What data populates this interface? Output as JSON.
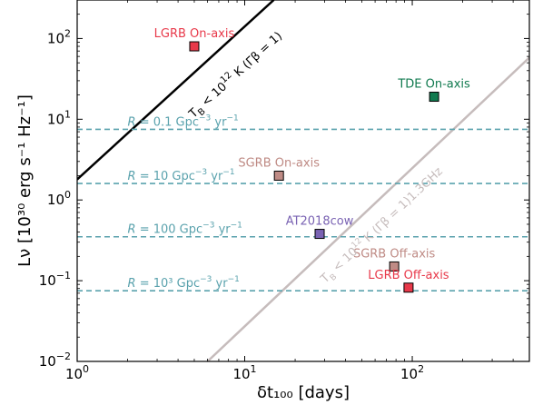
{
  "chart_data": {
    "type": "scatter",
    "xscale": "log",
    "yscale": "log",
    "xlim": [
      1,
      500
    ],
    "ylim": [
      0.01,
      300
    ],
    "xlabel": "δt₁₀₀ [days]",
    "ylabel": "Lν [10³⁰ erg s⁻¹ Hz⁻¹]",
    "x_ticks": [
      {
        "value": 1,
        "base": "10",
        "exp": "0"
      },
      {
        "value": 10,
        "base": "10",
        "exp": "1"
      },
      {
        "value": 100,
        "base": "10",
        "exp": "2"
      }
    ],
    "y_ticks": [
      {
        "value": 0.01,
        "base": "10",
        "exp": "−2"
      },
      {
        "value": 0.1,
        "base": "10",
        "exp": "−1"
      },
      {
        "value": 1,
        "base": "10",
        "exp": "0"
      },
      {
        "value": 10,
        "base": "10",
        "exp": "1"
      },
      {
        "value": 100,
        "base": "10",
        "exp": "2"
      }
    ],
    "points": [
      {
        "label": "LGRB On-axis",
        "x": 5.0,
        "y": 80,
        "color": "#e8394a",
        "label_pos": "above"
      },
      {
        "label": "TDE On-axis",
        "x": 135,
        "y": 19,
        "color": "#117a4f",
        "label_pos": "above"
      },
      {
        "label": "SGRB On-axis",
        "x": 16,
        "y": 2.0,
        "color": "#bf8b85",
        "label_pos": "above"
      },
      {
        "label": "AT2018cow",
        "x": 28,
        "y": 0.38,
        "color": "#7a63b3",
        "label_pos": "above"
      },
      {
        "label": "SGRB Off-axis",
        "x": 78,
        "y": 0.15,
        "color": "#bf8b85",
        "label_pos": "above"
      },
      {
        "label": "LGRB Off-axis",
        "x": 95,
        "y": 0.082,
        "color": "#e8394a",
        "label_pos": "above"
      }
    ],
    "rate_lines": [
      {
        "y": 7.5,
        "label_pre": "R = 0.1 Gpc",
        "label_exp1": "−3",
        "label_mid": " yr",
        "label_exp2": "−1"
      },
      {
        "y": 1.6,
        "label_pre": "R = 10 Gpc",
        "label_exp1": "−3",
        "label_mid": " yr",
        "label_exp2": "−1"
      },
      {
        "y": 0.35,
        "label_pre": "R = 100 Gpc",
        "label_exp1": "−3",
        "label_mid": " yr",
        "label_exp2": "−1"
      },
      {
        "y": 0.075,
        "label_pre": "R = 10³ Gpc",
        "label_exp1": "−3",
        "label_mid": " yr",
        "label_exp2": "−1"
      }
    ],
    "diagonal_lines": [
      {
        "label": "T_B < 10¹² K (Γβ = 1)",
        "color": "#000000",
        "points": [
          [
            1,
            1.8
          ],
          [
            14.9,
            300
          ]
        ]
      },
      {
        "label": "T_B < 10¹² K (Γβ = 1)1.3GHz",
        "color": "#c6bcbc",
        "points": [
          [
            6,
            0.01
          ],
          [
            500,
            58
          ]
        ]
      }
    ],
    "colors": {
      "rate_line": "#5aa2ad"
    }
  }
}
